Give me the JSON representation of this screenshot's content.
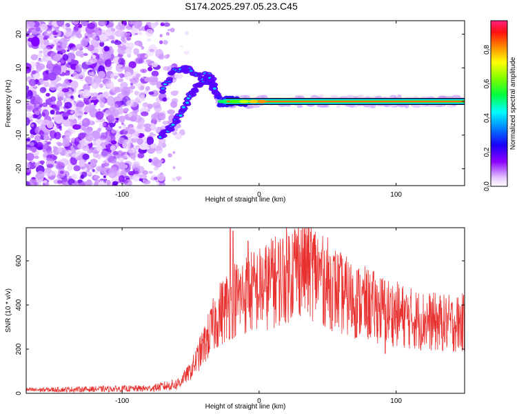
{
  "title": "S174.2025.297.05.23.C45",
  "chart_data": [
    {
      "type": "heatmap",
      "title": "S174.2025.297.05.23.C45",
      "xlabel": "Height of straight line (km)",
      "ylabel": "Frequency (Hz)",
      "xlim": [
        -170,
        150
      ],
      "ylim": [
        -25,
        24
      ],
      "xticks": [
        -100,
        0,
        100
      ],
      "yticks": [
        -20,
        -10,
        0,
        10,
        20
      ],
      "colorbar": {
        "label": "Normalized spectral amplitude",
        "range": [
          0,
          0.97
        ],
        "ticks": [
          0.0,
          0.2,
          0.4,
          0.6,
          0.8
        ],
        "tick_labels": [
          "0.0",
          "0.2",
          "0.4",
          "0.6",
          "0.8"
        ]
      },
      "features": {
        "scatter_region_x": [
          -170,
          -70
        ],
        "branches": [
          {
            "name": "upper",
            "points": [
              [
                -70,
                3.5
              ],
              [
                -62,
                9.5
              ],
              [
                -52,
                9.5
              ],
              [
                -42,
                7
              ],
              [
                -35,
                5
              ],
              [
                -30,
                1
              ]
            ]
          },
          {
            "name": "lower",
            "points": [
              [
                -72,
                -10.5
              ],
              [
                -64,
                -7.5
              ],
              [
                -56,
                -3
              ],
              [
                -50,
                2
              ],
              [
                -44,
                5
              ],
              [
                -38,
                8
              ],
              [
                -34,
                6
              ],
              [
                -30,
                1
              ]
            ]
          }
        ],
        "ridge": {
          "x_start": -30,
          "x_end": 150,
          "y": 0,
          "peak_value": 0.95
        }
      }
    },
    {
      "type": "line",
      "xlabel": "Height of straight line (km)",
      "ylabel": "SNR (10 * v/v)",
      "xlim": [
        -170,
        150
      ],
      "ylim": [
        0,
        750
      ],
      "xticks": [
        -100,
        0,
        100
      ],
      "yticks": [
        0,
        200,
        400,
        600
      ],
      "series": [
        {
          "name": "SNR",
          "color": "#e8312f",
          "envelope_x": [
            -170,
            -80,
            -60,
            -50,
            -40,
            -30,
            -20,
            -10,
            0,
            10,
            20,
            30,
            40,
            50,
            60,
            70,
            80,
            90,
            100,
            110,
            120,
            130,
            140,
            150
          ],
          "envelope_y": [
            15,
            22,
            40,
            100,
            220,
            350,
            420,
            450,
            470,
            500,
            540,
            590,
            560,
            500,
            450,
            420,
            400,
            380,
            360,
            340,
            330,
            320,
            315,
            320
          ],
          "spikes": [
            {
              "x": -21,
              "y": 760
            },
            {
              "x": -19,
              "y": 735
            },
            {
              "x": -8,
              "y": 690
            },
            {
              "x": 10,
              "y": 690
            },
            {
              "x": 46,
              "y": 650
            },
            {
              "x": 92,
              "y": 180
            }
          ]
        }
      ]
    }
  ],
  "palette": {
    "scatter": "#7f00ff",
    "ridge_core": "#e0202a",
    "series": "#e8312f"
  }
}
